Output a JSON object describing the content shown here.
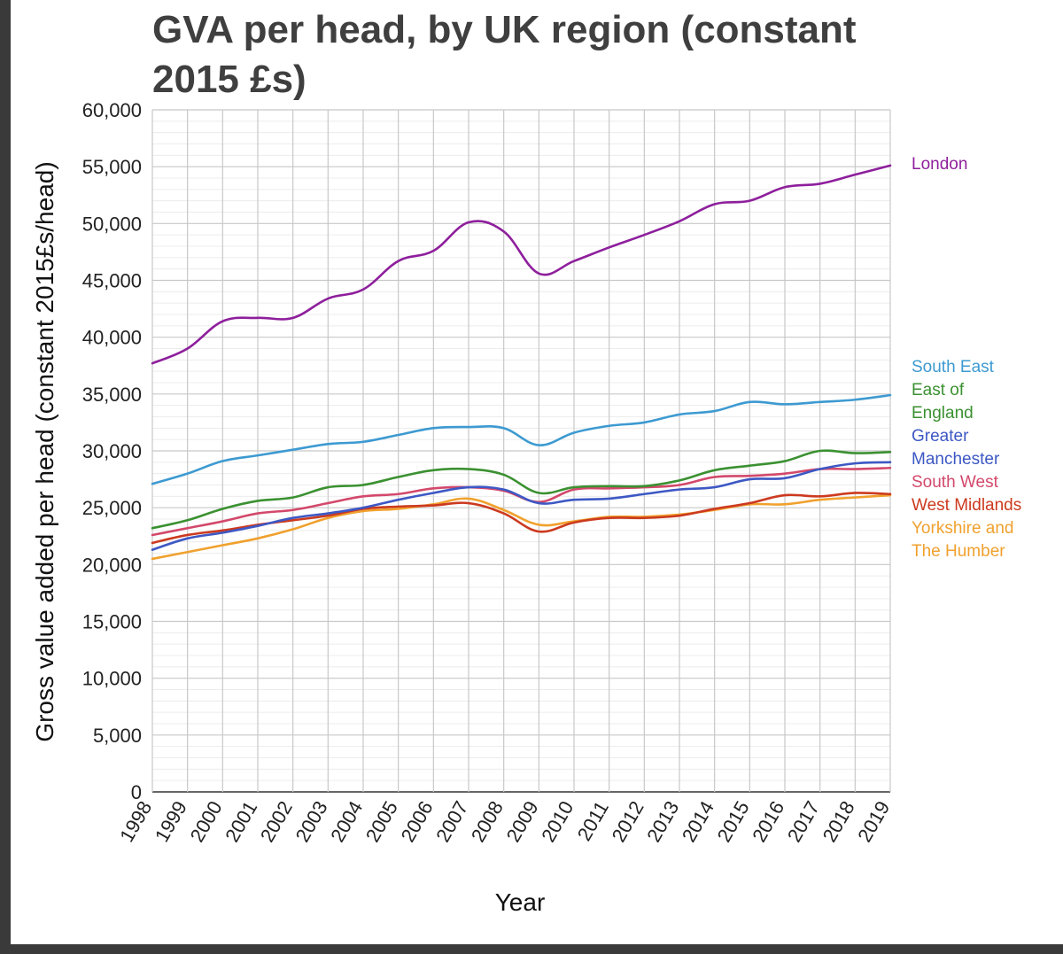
{
  "chart_data": {
    "type": "line",
    "title_lines": [
      "GVA per head, by UK region (constant",
      "2015 £s)"
    ],
    "xlabel": "Year",
    "ylabel": "Gross value added per head (constant 2015£s/head)",
    "ylim": [
      0,
      60000
    ],
    "yticks": [
      0,
      5000,
      10000,
      15000,
      20000,
      25000,
      30000,
      35000,
      40000,
      45000,
      50000,
      55000,
      60000
    ],
    "ytick_labels": [
      "0",
      "5,000",
      "10,000",
      "15,000",
      "20,000",
      "25,000",
      "30,000",
      "35,000",
      "40,000",
      "45,000",
      "50,000",
      "55,000",
      "60,000"
    ],
    "x": [
      1998,
      1999,
      2000,
      2001,
      2002,
      2003,
      2004,
      2005,
      2006,
      2007,
      2008,
      2009,
      2010,
      2011,
      2012,
      2013,
      2014,
      2015,
      2016,
      2017,
      2018,
      2019
    ],
    "xtick_labels": [
      "1998",
      "1999",
      "2000",
      "2001",
      "2002",
      "2003",
      "2004",
      "2005",
      "2006",
      "2007",
      "2008",
      "2009",
      "2010",
      "2011",
      "2012",
      "2013",
      "2014",
      "2015",
      "2016",
      "2017",
      "2018",
      "2019"
    ],
    "grid": true,
    "legend": "right",
    "series": [
      {
        "name": "London",
        "label_lines": [
          "London"
        ],
        "color": "#8e1f9c",
        "values": [
          37700,
          39000,
          41400,
          41700,
          41700,
          43400,
          44200,
          46700,
          47600,
          50100,
          49300,
          45600,
          46700,
          47900,
          49000,
          50200,
          51700,
          52000,
          53200,
          53500,
          54300,
          55100
        ]
      },
      {
        "name": "South East",
        "label_lines": [
          "South East"
        ],
        "color": "#3d9ad1",
        "values": [
          27100,
          28000,
          29100,
          29600,
          30100,
          30600,
          30800,
          31400,
          32000,
          32100,
          32000,
          30500,
          31600,
          32200,
          32500,
          33200,
          33500,
          34300,
          34100,
          34300,
          34500,
          34900
        ]
      },
      {
        "name": "East of England",
        "label_lines": [
          "East of",
          "England"
        ],
        "color": "#3b9131",
        "values": [
          23200,
          23900,
          24900,
          25600,
          25900,
          26800,
          27000,
          27700,
          28300,
          28400,
          27900,
          26300,
          26800,
          26900,
          26900,
          27400,
          28300,
          28700,
          29100,
          30000,
          29800,
          29900
        ]
      },
      {
        "name": "Greater Manchester",
        "label_lines": [
          "Greater",
          "Manchester"
        ],
        "color": "#3d58c4",
        "values": [
          21300,
          22300,
          22800,
          23400,
          24100,
          24500,
          25000,
          25700,
          26300,
          26800,
          26600,
          25400,
          25700,
          25800,
          26200,
          26600,
          26800,
          27500,
          27600,
          28400,
          28900,
          29000
        ]
      },
      {
        "name": "South West",
        "label_lines": [
          "South West"
        ],
        "color": "#d3486b",
        "values": [
          22600,
          23200,
          23800,
          24500,
          24800,
          25400,
          26000,
          26200,
          26700,
          26800,
          26500,
          25500,
          26600,
          26700,
          26800,
          27000,
          27700,
          27800,
          28000,
          28400,
          28400,
          28500
        ]
      },
      {
        "name": "West Midlands",
        "label_lines": [
          "West Midlands"
        ],
        "color": "#cc3a1f",
        "values": [
          21900,
          22600,
          23000,
          23500,
          23900,
          24300,
          24900,
          25100,
          25200,
          25400,
          24500,
          22900,
          23700,
          24100,
          24100,
          24300,
          24900,
          25400,
          26100,
          26000,
          26300,
          26200
        ]
      },
      {
        "name": "Yorkshire and The Humber",
        "label_lines": [
          "Yorkshire and",
          "The Humber"
        ],
        "color": "#f0a12e",
        "values": [
          20500,
          21100,
          21700,
          22300,
          23100,
          24100,
          24700,
          24900,
          25300,
          25800,
          24800,
          23500,
          23800,
          24200,
          24200,
          24400,
          24800,
          25300,
          25300,
          25700,
          25900,
          26100
        ]
      }
    ]
  }
}
